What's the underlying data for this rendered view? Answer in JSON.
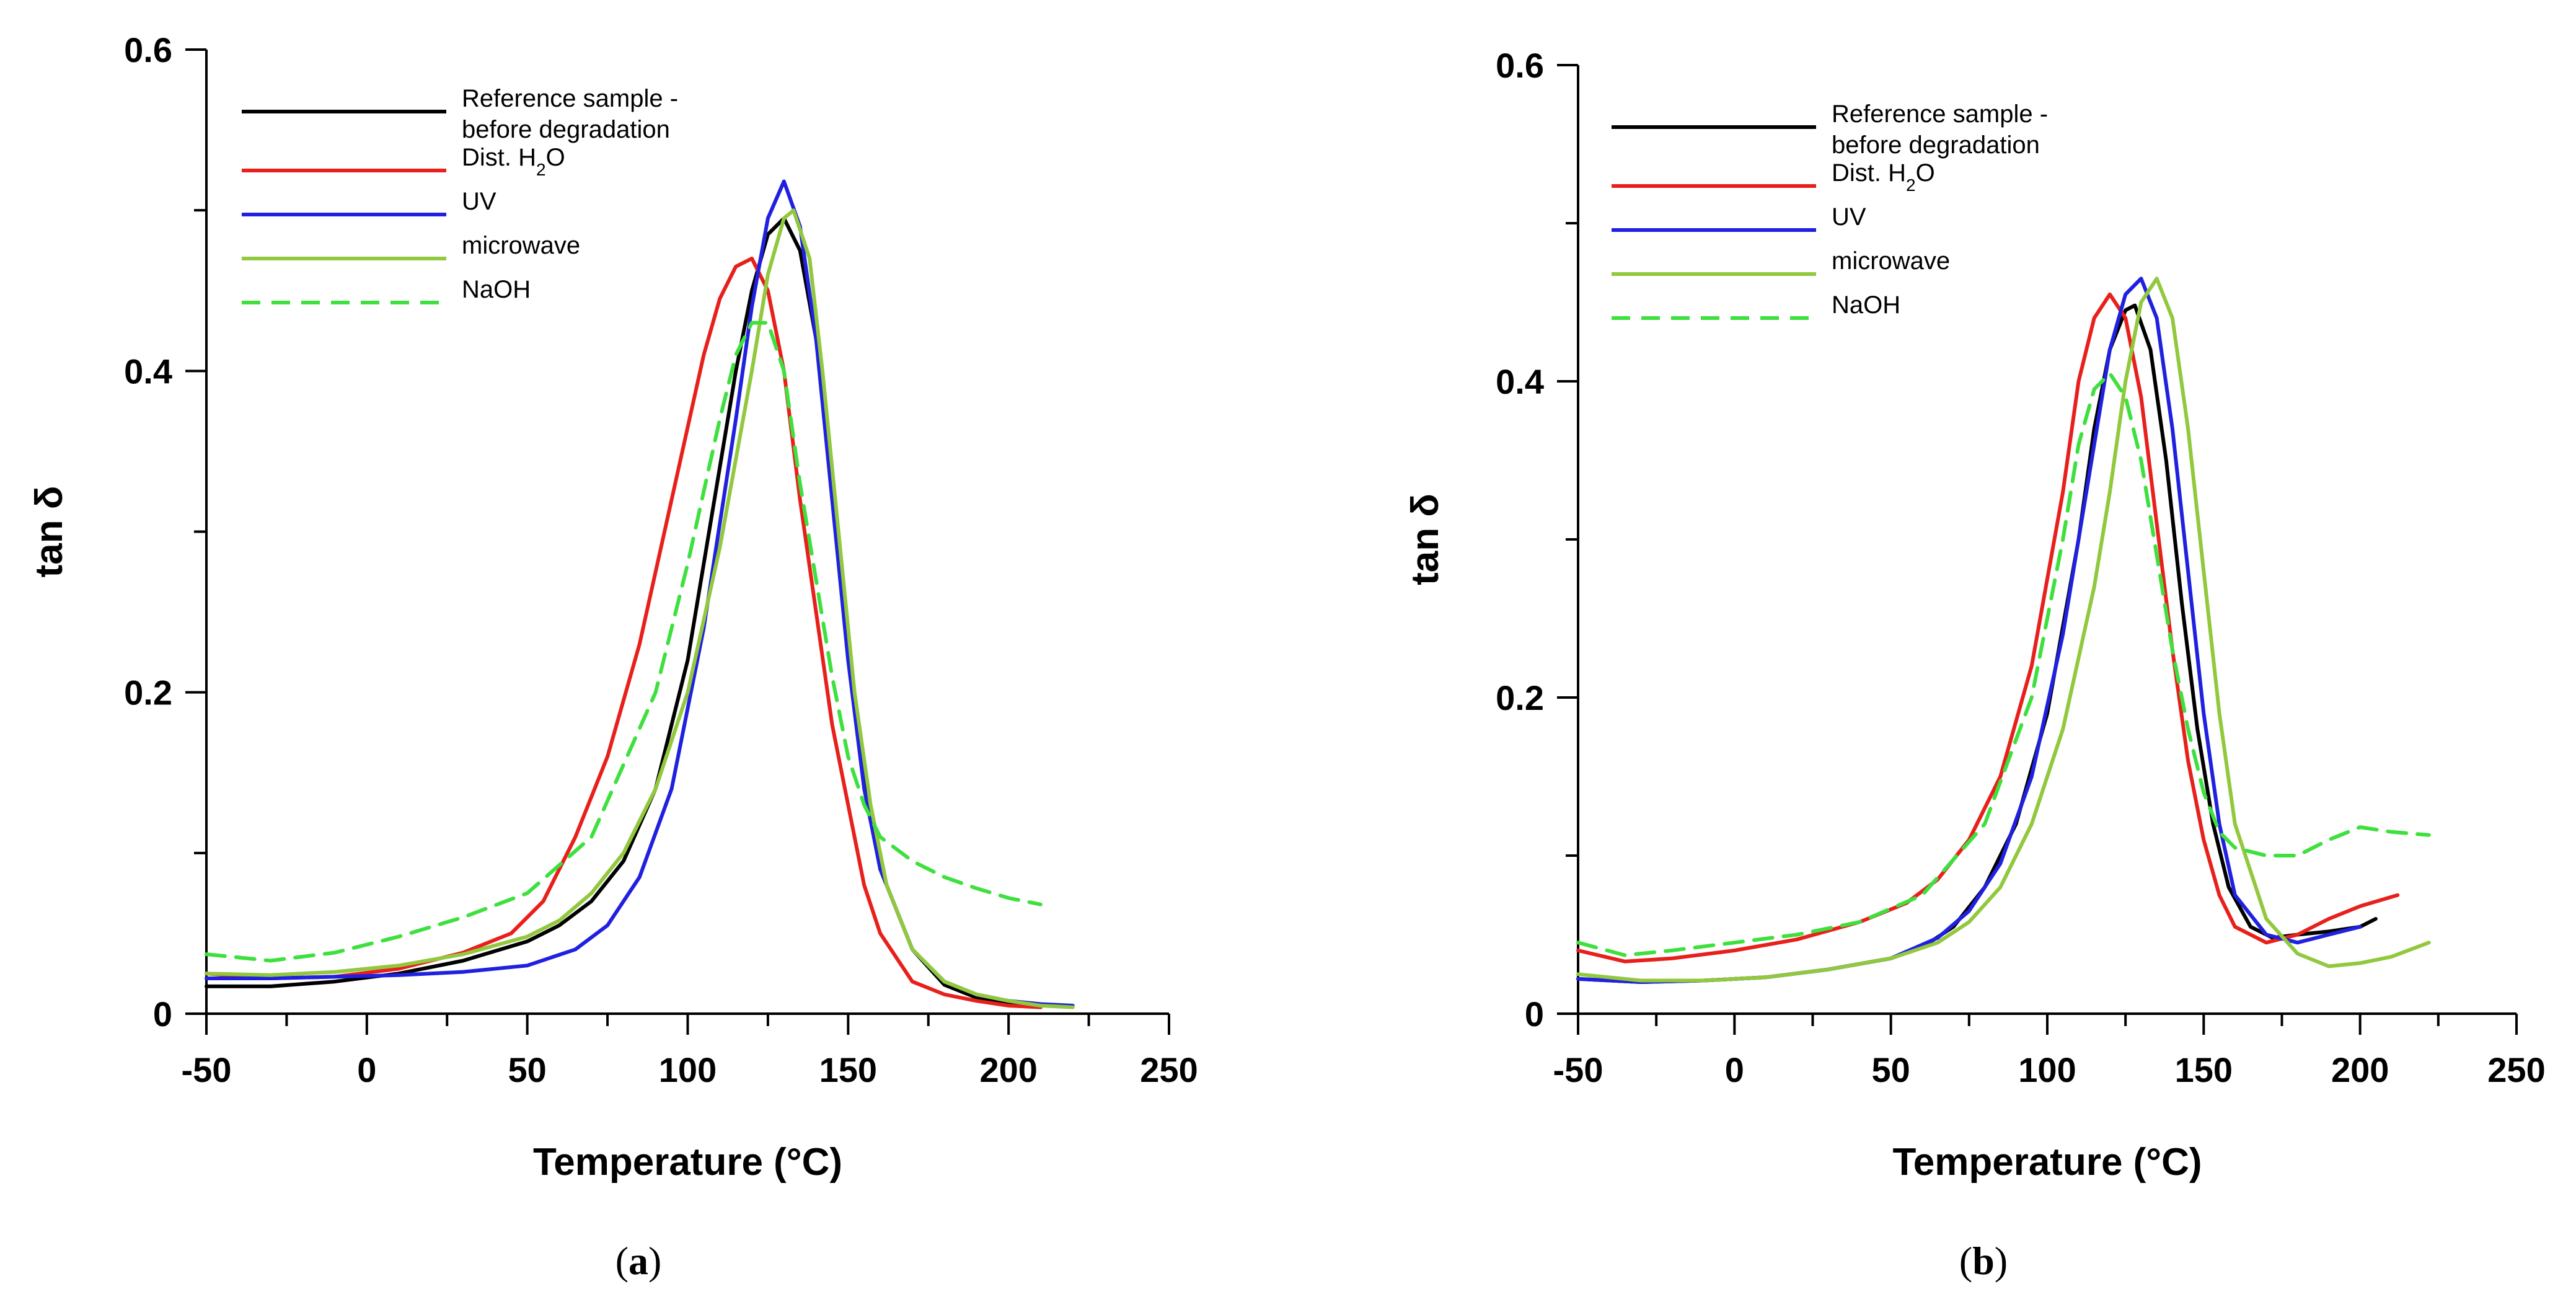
{
  "chart_data": [
    {
      "type": "line",
      "panel_label": "a",
      "xlabel": "Temperature (°C)",
      "ylabel": "tan δ",
      "xlim": [
        -50,
        250
      ],
      "ylim": [
        0,
        0.6
      ],
      "xticks": [
        -50,
        0,
        50,
        100,
        150,
        200,
        250
      ],
      "yticks": [
        0,
        0.2,
        0.4,
        0.6
      ],
      "xtick_labels": [
        "-50",
        "0",
        "50",
        "100",
        "150",
        "200",
        "250"
      ],
      "ytick_labels": [
        "0",
        "0.2",
        "0.4",
        "0.6"
      ],
      "grid": false,
      "legend": "top-left",
      "series": [
        {
          "name": "Reference sample - before degradation",
          "legend_lines": [
            "Reference sample -",
            "before degradation"
          ],
          "color": "#000000",
          "dash": "solid",
          "x": [
            -50,
            -30,
            -10,
            10,
            30,
            50,
            60,
            70,
            80,
            90,
            100,
            110,
            115,
            120,
            125,
            130,
            135,
            140,
            145,
            150,
            155,
            160,
            170,
            180,
            190,
            200,
            210
          ],
          "y": [
            0.017,
            0.017,
            0.02,
            0.025,
            0.033,
            0.045,
            0.055,
            0.07,
            0.095,
            0.14,
            0.22,
            0.34,
            0.4,
            0.45,
            0.485,
            0.495,
            0.475,
            0.42,
            0.33,
            0.23,
            0.15,
            0.09,
            0.04,
            0.018,
            0.01,
            0.006,
            0.004
          ]
        },
        {
          "name": "Dist. H₂O",
          "legend_lines": [
            "Dist. H₂O"
          ],
          "color": "#e8201c",
          "dash": "solid",
          "x": [
            -50,
            -30,
            -10,
            10,
            30,
            45,
            55,
            65,
            75,
            85,
            95,
            105,
            110,
            115,
            120,
            125,
            130,
            135,
            140,
            145,
            150,
            155,
            160,
            170,
            180,
            190,
            200,
            210
          ],
          "y": [
            0.025,
            0.022,
            0.023,
            0.028,
            0.038,
            0.05,
            0.07,
            0.11,
            0.16,
            0.23,
            0.32,
            0.41,
            0.445,
            0.465,
            0.47,
            0.45,
            0.4,
            0.32,
            0.25,
            0.18,
            0.13,
            0.08,
            0.05,
            0.02,
            0.012,
            0.008,
            0.005,
            0.004
          ]
        },
        {
          "name": "UV",
          "legend_lines": [
            "UV"
          ],
          "color": "#2020e0",
          "dash": "solid",
          "x": [
            -50,
            -30,
            -10,
            10,
            30,
            50,
            65,
            75,
            85,
            95,
            105,
            115,
            120,
            125,
            130,
            135,
            140,
            145,
            150,
            155,
            160,
            170,
            180,
            190,
            200,
            210,
            220
          ],
          "y": [
            0.022,
            0.022,
            0.023,
            0.024,
            0.026,
            0.03,
            0.04,
            0.055,
            0.085,
            0.14,
            0.24,
            0.37,
            0.44,
            0.495,
            0.518,
            0.49,
            0.42,
            0.32,
            0.22,
            0.14,
            0.09,
            0.04,
            0.02,
            0.012,
            0.008,
            0.006,
            0.005
          ]
        },
        {
          "name": "microwave",
          "legend_lines": [
            "microwave"
          ],
          "color": "#92c83e",
          "dash": "solid",
          "x": [
            -50,
            -30,
            -10,
            10,
            30,
            50,
            60,
            70,
            80,
            90,
            100,
            110,
            120,
            125,
            130,
            133,
            138,
            142,
            147,
            152,
            157,
            162,
            170,
            180,
            190,
            200,
            210,
            220
          ],
          "y": [
            0.025,
            0.024,
            0.026,
            0.03,
            0.037,
            0.048,
            0.058,
            0.075,
            0.1,
            0.14,
            0.2,
            0.29,
            0.4,
            0.46,
            0.495,
            0.5,
            0.47,
            0.4,
            0.3,
            0.2,
            0.13,
            0.08,
            0.04,
            0.02,
            0.012,
            0.008,
            0.005,
            0.004
          ]
        },
        {
          "name": "NaOH",
          "legend_lines": [
            "NaOH"
          ],
          "color": "#3ee03e",
          "dash": "dashed",
          "x": [
            -50,
            -30,
            -10,
            10,
            30,
            50,
            70,
            90,
            100,
            110,
            115,
            120,
            125,
            130,
            135,
            140,
            145,
            150,
            155,
            160,
            170,
            180,
            190,
            200,
            210
          ],
          "y": [
            0.037,
            0.033,
            0.038,
            0.048,
            0.06,
            0.075,
            0.11,
            0.2,
            0.28,
            0.37,
            0.41,
            0.43,
            0.43,
            0.4,
            0.33,
            0.27,
            0.21,
            0.16,
            0.13,
            0.11,
            0.095,
            0.085,
            0.078,
            0.072,
            0.068
          ]
        }
      ]
    },
    {
      "type": "line",
      "panel_label": "b",
      "xlabel": "Temperature (°C)",
      "ylabel": "tan δ",
      "xlim": [
        -50,
        250
      ],
      "ylim": [
        0,
        0.6
      ],
      "xticks": [
        -50,
        0,
        50,
        100,
        150,
        200,
        250
      ],
      "yticks": [
        0,
        0.2,
        0.4,
        0.6
      ],
      "xtick_labels": [
        "-50",
        "0",
        "50",
        "100",
        "150",
        "200",
        "250"
      ],
      "ytick_labels": [
        "0",
        "0.2",
        "0.4",
        "0.6"
      ],
      "grid": false,
      "legend": "top-left",
      "series": [
        {
          "name": "Reference sample - before degradation",
          "legend_lines": [
            "Reference sample -",
            "before degradation"
          ],
          "color": "#000000",
          "dash": "solid",
          "x": [
            -50,
            -30,
            -10,
            10,
            30,
            50,
            60,
            70,
            80,
            90,
            100,
            110,
            115,
            120,
            125,
            128,
            133,
            138,
            143,
            148,
            153,
            158,
            165,
            172,
            180,
            190,
            200,
            205
          ],
          "y": [
            0.022,
            0.02,
            0.021,
            0.023,
            0.028,
            0.035,
            0.042,
            0.055,
            0.08,
            0.12,
            0.19,
            0.3,
            0.37,
            0.42,
            0.445,
            0.448,
            0.42,
            0.35,
            0.26,
            0.18,
            0.12,
            0.08,
            0.055,
            0.048,
            0.05,
            0.052,
            0.055,
            0.06
          ]
        },
        {
          "name": "Dist. H₂O",
          "legend_lines": [
            "Dist. H₂O"
          ],
          "color": "#e8201c",
          "dash": "solid",
          "x": [
            -50,
            -35,
            -20,
            0,
            20,
            40,
            55,
            65,
            75,
            85,
            95,
            105,
            110,
            115,
            120,
            125,
            130,
            135,
            140,
            145,
            150,
            155,
            160,
            170,
            180,
            190,
            200,
            212
          ],
          "y": [
            0.04,
            0.033,
            0.035,
            0.04,
            0.047,
            0.058,
            0.07,
            0.085,
            0.11,
            0.15,
            0.22,
            0.33,
            0.4,
            0.44,
            0.455,
            0.44,
            0.39,
            0.31,
            0.23,
            0.16,
            0.11,
            0.075,
            0.055,
            0.045,
            0.05,
            0.06,
            0.068,
            0.075
          ]
        },
        {
          "name": "UV",
          "legend_lines": [
            "UV"
          ],
          "color": "#2020e0",
          "dash": "solid",
          "x": [
            -50,
            -30,
            -10,
            10,
            30,
            50,
            65,
            75,
            85,
            95,
            105,
            115,
            120,
            125,
            130,
            135,
            140,
            145,
            150,
            155,
            160,
            170,
            180,
            190,
            200
          ],
          "y": [
            0.022,
            0.02,
            0.021,
            0.023,
            0.028,
            0.035,
            0.048,
            0.065,
            0.095,
            0.15,
            0.24,
            0.36,
            0.42,
            0.455,
            0.465,
            0.44,
            0.37,
            0.28,
            0.19,
            0.12,
            0.075,
            0.05,
            0.045,
            0.05,
            0.055
          ]
        },
        {
          "name": "microwave",
          "legend_lines": [
            "microwave"
          ],
          "color": "#92c83e",
          "dash": "solid",
          "x": [
            -50,
            -30,
            -10,
            10,
            30,
            50,
            65,
            75,
            85,
            95,
            105,
            115,
            120,
            125,
            130,
            135,
            140,
            145,
            150,
            155,
            160,
            170,
            180,
            190,
            200,
            210,
            222
          ],
          "y": [
            0.025,
            0.021,
            0.021,
            0.023,
            0.028,
            0.035,
            0.045,
            0.058,
            0.08,
            0.12,
            0.18,
            0.27,
            0.33,
            0.4,
            0.45,
            0.465,
            0.44,
            0.37,
            0.28,
            0.19,
            0.12,
            0.06,
            0.038,
            0.03,
            0.032,
            0.036,
            0.045
          ]
        },
        {
          "name": "NaOH",
          "legend_lines": [
            "NaOH"
          ],
          "color": "#3ee03e",
          "dash": "dashed",
          "x": [
            -50,
            -35,
            -20,
            0,
            20,
            40,
            60,
            80,
            95,
            105,
            110,
            115,
            120,
            125,
            130,
            135,
            140,
            145,
            150,
            155,
            160,
            170,
            180,
            190,
            200,
            210,
            222
          ],
          "y": [
            0.045,
            0.037,
            0.04,
            0.045,
            0.05,
            0.058,
            0.075,
            0.12,
            0.2,
            0.3,
            0.36,
            0.395,
            0.405,
            0.39,
            0.35,
            0.29,
            0.23,
            0.18,
            0.14,
            0.115,
            0.105,
            0.1,
            0.1,
            0.11,
            0.118,
            0.115,
            0.113
          ]
        }
      ]
    }
  ]
}
